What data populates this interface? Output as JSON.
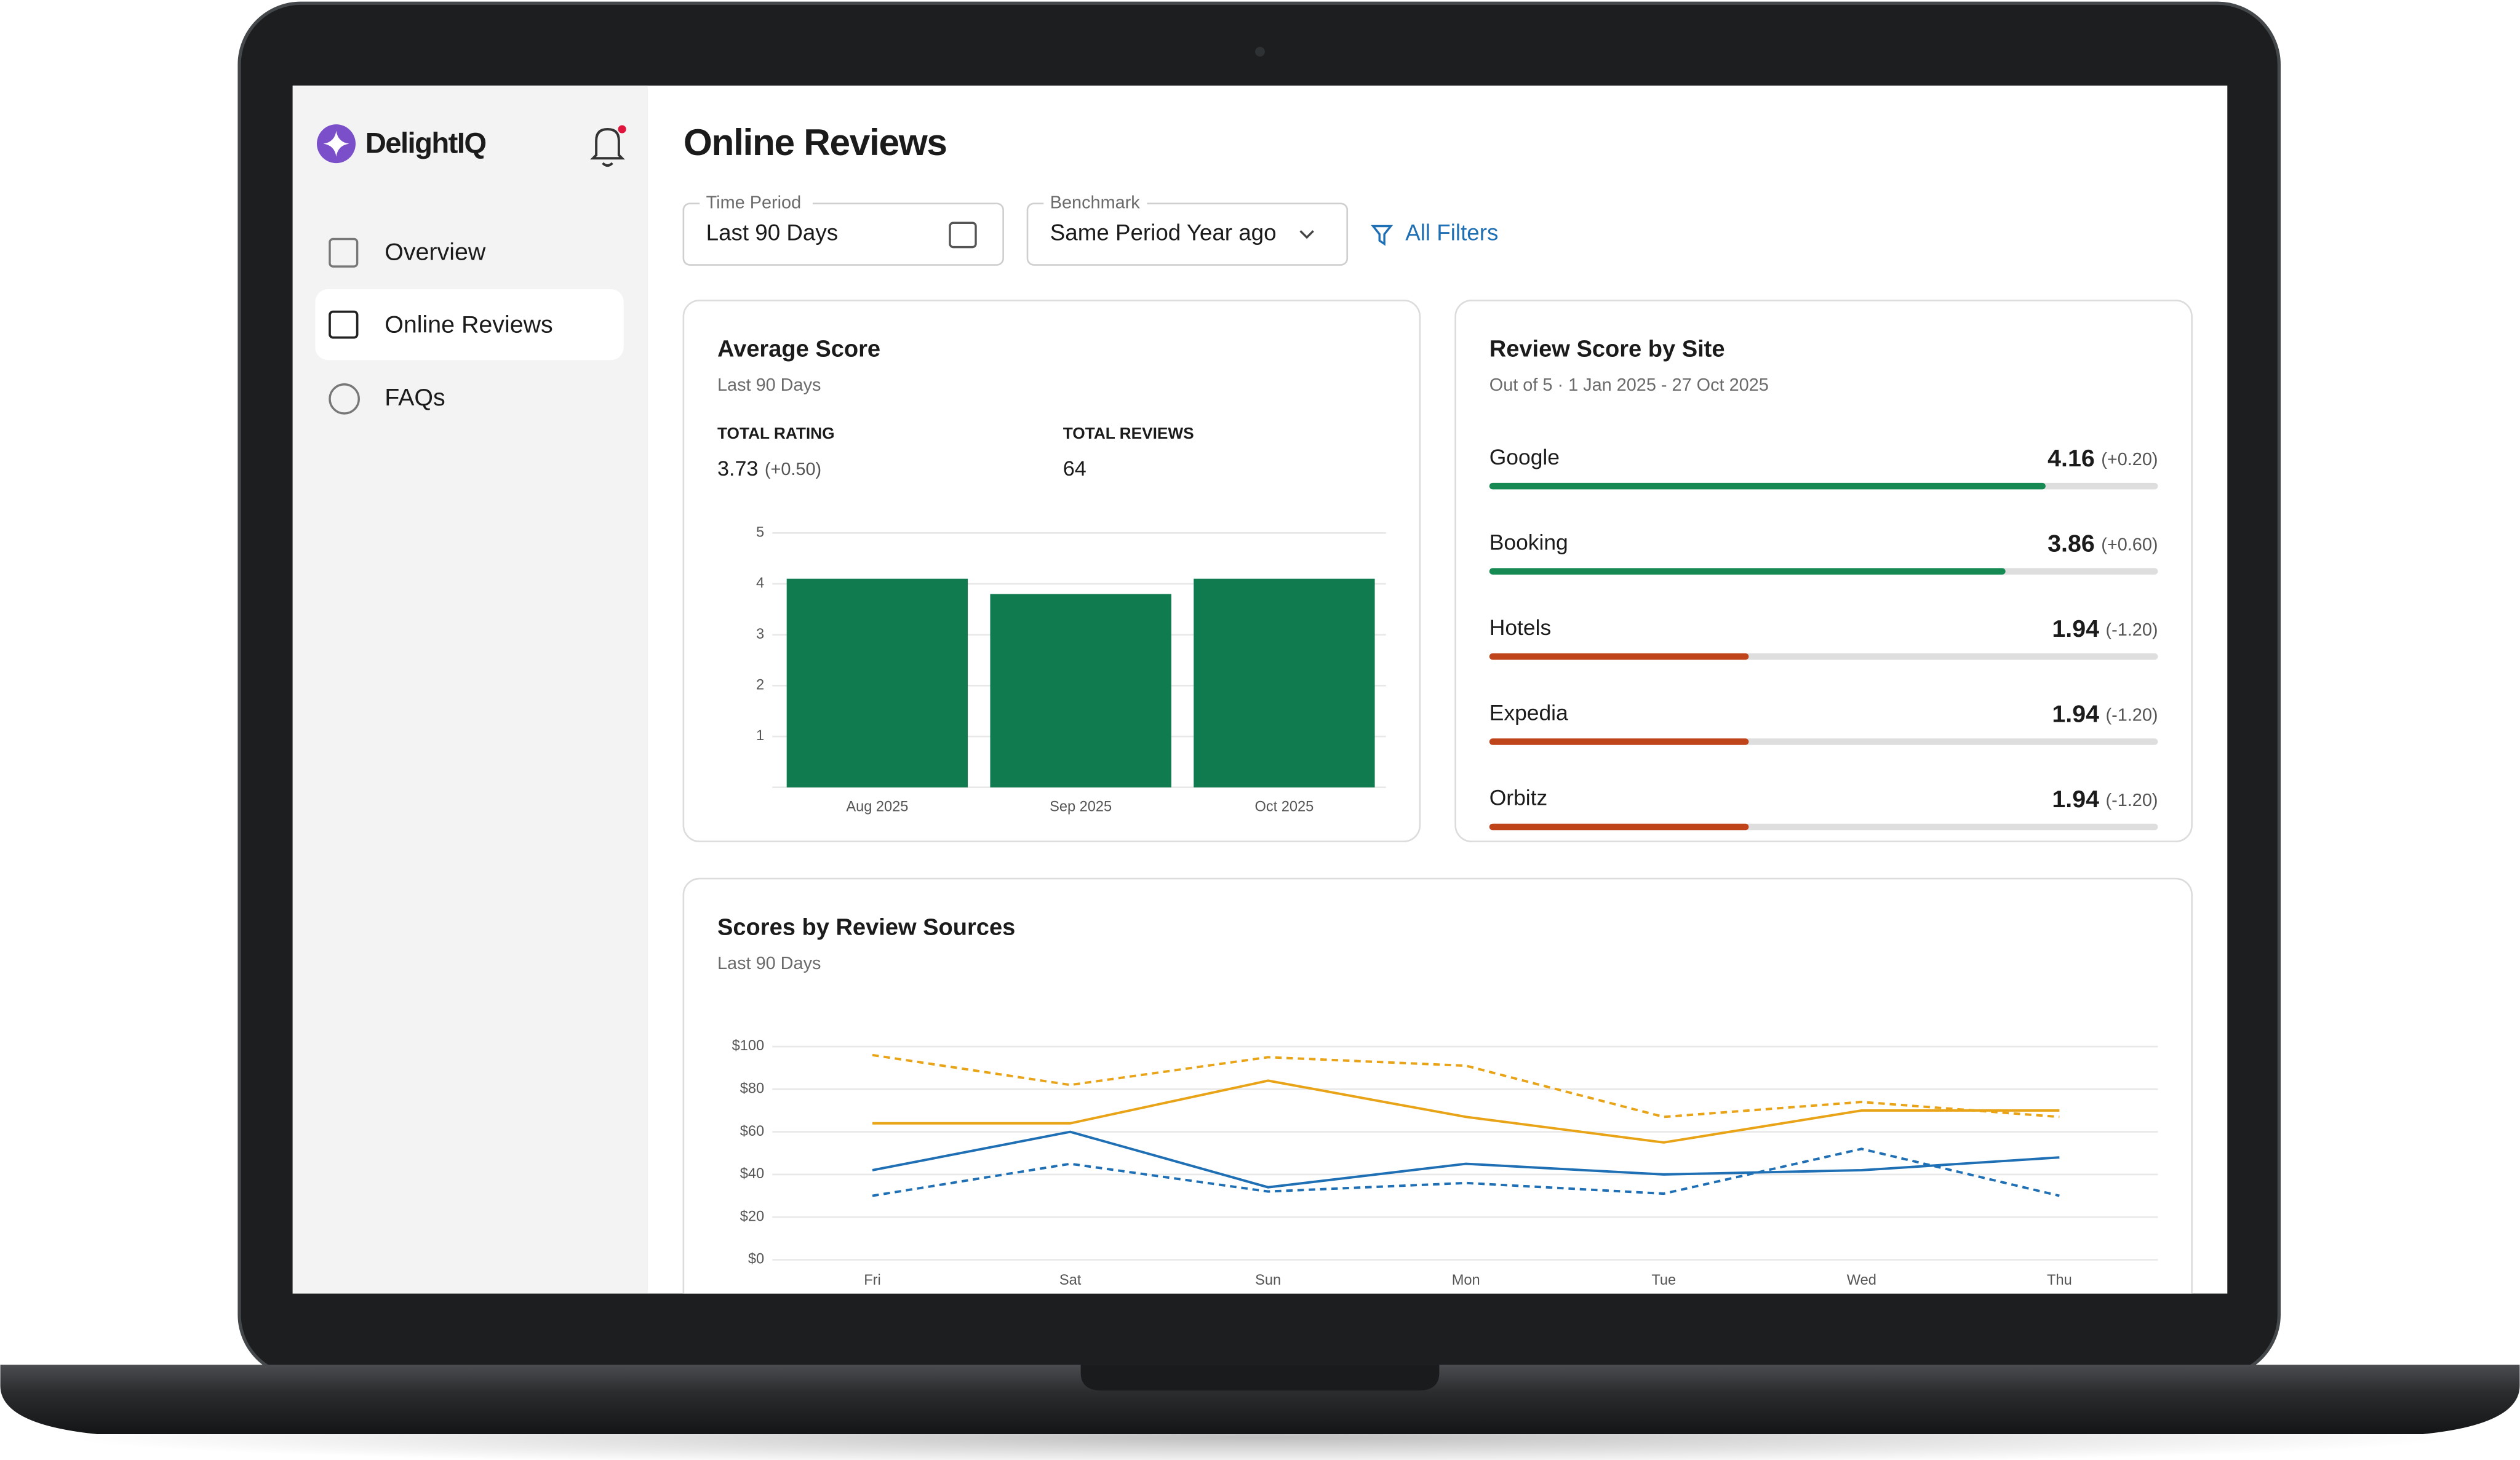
{
  "app": {
    "name": "DelightIQ"
  },
  "nav": [
    "Overview",
    "Online Reviews",
    "FAQs"
  ],
  "page_title": "Online Reviews",
  "filters": {
    "time_period": {
      "label": "Time Period",
      "value": "Last 90 Days"
    },
    "benchmark": {
      "label": "Benchmark",
      "value": "Same Period Year ago"
    },
    "all_filters": "All Filters"
  },
  "summary": {
    "total_rating_label": "TOTAL RATING",
    "total_rating": 3.73,
    "total_rating_change": "(+0.50)",
    "total_reviews_label": "TOTAL REVIEWS",
    "total_reviews": 64
  },
  "site_scores": {
    "title": "Review Score by Site",
    "subtitle": "Out of 5 · 1 Jan 2025 - 27 Oct 2025",
    "xlim": [
      0,
      5
    ],
    "sites": [
      {
        "name": "Google",
        "score": 4.16,
        "change": "(+0.20)",
        "color": "#178a54"
      },
      {
        "name": "Booking",
        "score": 3.86,
        "change": "(+0.60)",
        "color": "#178a54"
      },
      {
        "name": "Hotels",
        "score": 1.94,
        "change": "(-1.20)",
        "color": "#c0441a"
      },
      {
        "name": "Expedia",
        "score": 1.94,
        "change": "(-1.20)",
        "color": "#c0441a"
      },
      {
        "name": "Orbitz",
        "score": 1.94,
        "change": "(-1.20)",
        "color": "#c0441a"
      }
    ]
  },
  "chart_data": [
    {
      "type": "bar",
      "title": "Average Score",
      "subtitle": "Last 90 Days",
      "categories": [
        "Aug 2025",
        "Sep 2025",
        "Oct 2025"
      ],
      "values": [
        4.1,
        3.8,
        4.1
      ],
      "color": "#0f7b4f",
      "ylim": [
        0,
        5
      ],
      "yticks": [
        1,
        2,
        3,
        4,
        5
      ],
      "grid": true
    },
    {
      "type": "line",
      "title": "Scores by Review Sources",
      "subtitle": "Last 90 Days",
      "categories": [
        "Fri",
        "Sat",
        "Sun",
        "Mon",
        "Tue",
        "Wed",
        "Thu"
      ],
      "series": [
        {
          "color": "#e8a317",
          "dashed": true,
          "values": [
            96,
            82,
            95,
            91,
            67,
            74,
            67
          ]
        },
        {
          "color": "#e8a317",
          "dashed": false,
          "values": [
            64,
            64,
            84,
            67,
            55,
            70,
            70
          ]
        },
        {
          "color": "#1f6fb5",
          "dashed": false,
          "values": [
            42,
            60,
            34,
            45,
            40,
            42,
            48
          ]
        },
        {
          "color": "#1f6fb5",
          "dashed": true,
          "values": [
            30,
            45,
            32,
            36,
            31,
            52,
            30
          ]
        }
      ],
      "ylim": [
        0,
        100
      ],
      "yticks": [
        {
          "value": 0,
          "label": "$0"
        },
        {
          "value": 20,
          "label": "$20"
        },
        {
          "value": 40,
          "label": "$40"
        },
        {
          "value": 60,
          "label": "$60"
        },
        {
          "value": 80,
          "label": "$80"
        },
        {
          "value": 100,
          "label": "$100"
        }
      ],
      "grid": true
    }
  ]
}
